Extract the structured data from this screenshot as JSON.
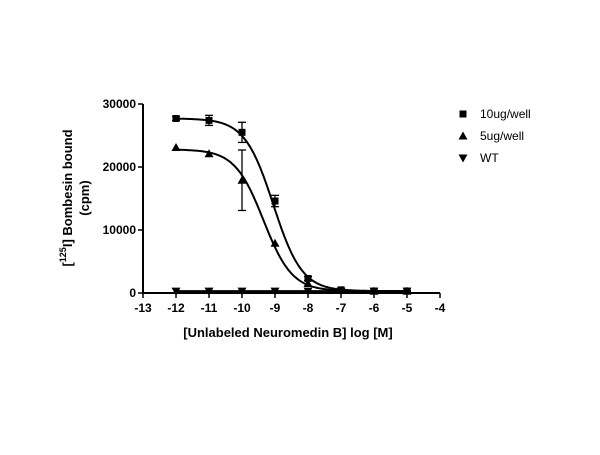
{
  "chart_data": {
    "type": "scatter",
    "xlabel": "[Unlabeled Neuromedin B]  log [M]",
    "ylabel_line1_prefix": "[",
    "ylabel_line1_sup": "125",
    "ylabel_line1_suffix": "I] Bombesin bound",
    "ylabel_line2": "(cpm)",
    "xlim": [
      -13,
      -4
    ],
    "ylim": [
      0,
      30000
    ],
    "x_ticks": [
      -13,
      -12,
      -11,
      -10,
      -9,
      -8,
      -7,
      -6,
      -5,
      -4
    ],
    "x_tick_labels": [
      "-13",
      "-12",
      "-11",
      "-10",
      "-9",
      "-8",
      "-7",
      "-6",
      "-5",
      "-4"
    ],
    "y_ticks": [
      0,
      10000,
      20000,
      30000
    ],
    "y_tick_labels": [
      "0",
      "10000",
      "20000",
      "30000"
    ],
    "grid": false,
    "legend_position": "top-right",
    "series": [
      {
        "name": "10ug/well",
        "marker": "square",
        "x": [
          -12,
          -11,
          -10,
          -9,
          -8,
          -7,
          -6,
          -5
        ],
        "y": [
          27700,
          27400,
          25500,
          14600,
          2300,
          500,
          300,
          300
        ],
        "err": [
          300,
          800,
          1600,
          900,
          300,
          100,
          100,
          100
        ],
        "fit": {
          "top": 27700,
          "bottom": 300,
          "logIC50": -9.05,
          "hill": 1.0
        }
      },
      {
        "name": "5ug/well",
        "marker": "triangle-up",
        "x": [
          -12,
          -11,
          -10,
          -9,
          -8,
          -7,
          -6,
          -5
        ],
        "y": [
          23100,
          22100,
          17900,
          7900,
          1500,
          400,
          300,
          300
        ],
        "err": [
          0,
          0,
          4800,
          0,
          0,
          0,
          0,
          0
        ],
        "fit": {
          "top": 22800,
          "bottom": 300,
          "logIC50": -9.35,
          "hill": 1.0
        }
      },
      {
        "name": "WT",
        "marker": "triangle-down",
        "x": [
          -12,
          -11,
          -10,
          -9,
          -8,
          -7,
          -6,
          -5
        ],
        "y": [
          300,
          300,
          300,
          300,
          300,
          300,
          300,
          300
        ],
        "err": [
          0,
          0,
          0,
          0,
          0,
          0,
          0,
          0
        ],
        "fit": {
          "top": 300,
          "bottom": 300,
          "logIC50": -9.0,
          "hill": 1.0
        }
      }
    ],
    "colors": {
      "ink": "#000000",
      "background": "#ffffff"
    }
  }
}
